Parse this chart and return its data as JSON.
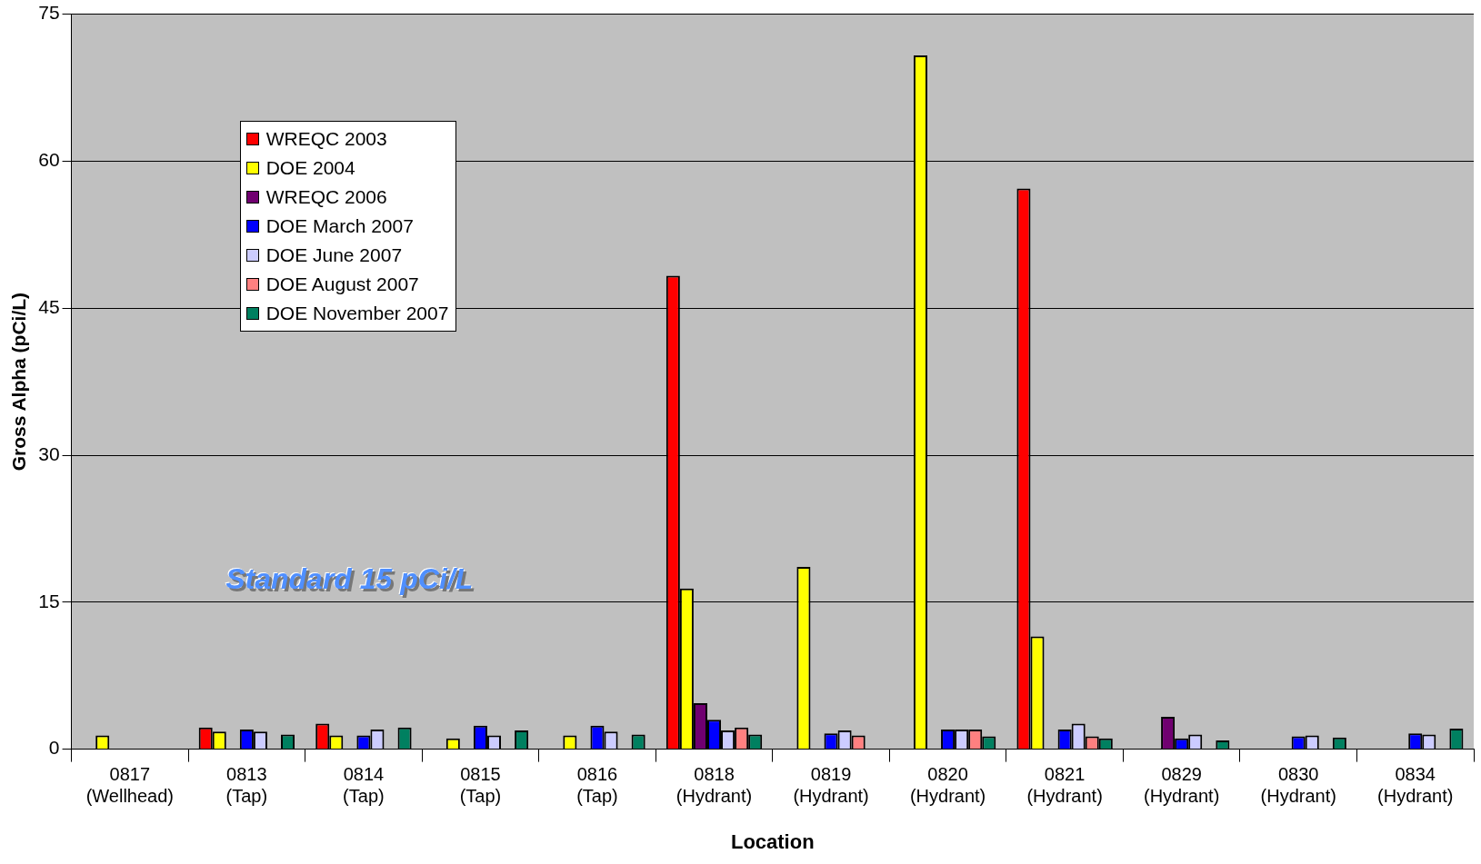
{
  "chart_data": {
    "type": "bar",
    "xlabel": "Location",
    "ylabel": "Gross Alpha (pCi/L)",
    "categories": [
      "0817 (Wellhead)",
      "0813 (Tap)",
      "0814 (Tap)",
      "0815 (Tap)",
      "0816 (Tap)",
      "0818 (Hydrant)",
      "0819 (Hydrant)",
      "0820 (Hydrant)",
      "0821 (Hydrant)",
      "0829 (Hydrant)",
      "0830 (Hydrant)",
      "0834 (Hydrant)"
    ],
    "series": [
      {
        "name": "WREQC 2003",
        "color": "#ff0000",
        "values": [
          null,
          2.2,
          2.6,
          null,
          null,
          48.3,
          null,
          null,
          57.2,
          null,
          null,
          null
        ]
      },
      {
        "name": "DOE 2004",
        "color": "#ffff00",
        "values": [
          1.4,
          1.8,
          1.4,
          1.1,
          1.4,
          16.4,
          18.6,
          70.8,
          11.5,
          null,
          null,
          null
        ]
      },
      {
        "name": "WREQC 2006",
        "color": "#700070",
        "values": [
          null,
          null,
          null,
          null,
          null,
          4.7,
          null,
          null,
          null,
          3.3,
          null,
          null
        ]
      },
      {
        "name": "DOE March 2007",
        "color": "#0000ff",
        "values": [
          null,
          2.0,
          1.4,
          2.4,
          2.4,
          3.0,
          1.6,
          2.0,
          2.0,
          1.1,
          1.3,
          1.6
        ]
      },
      {
        "name": "DOE June 2007",
        "color": "#ccccff",
        "values": [
          null,
          1.8,
          2.0,
          1.4,
          1.8,
          1.9,
          1.9,
          2.0,
          2.6,
          1.5,
          1.4,
          1.5
        ]
      },
      {
        "name": "DOE August 2007",
        "color": "#ff8080",
        "values": [
          null,
          null,
          null,
          null,
          null,
          2.2,
          1.4,
          2.0,
          1.3,
          null,
          null,
          null
        ]
      },
      {
        "name": "DOE November 2007",
        "color": "#008060",
        "values": [
          null,
          1.5,
          2.2,
          1.9,
          1.5,
          1.5,
          null,
          1.3,
          1.1,
          0.9,
          1.2,
          2.1
        ]
      }
    ],
    "ylim": [
      0,
      75
    ],
    "yticks": [
      0,
      15,
      30,
      45,
      60,
      75
    ],
    "grid": "y",
    "legend": "top left",
    "annotations": [
      "Standard 15 pCi/L"
    ]
  }
}
